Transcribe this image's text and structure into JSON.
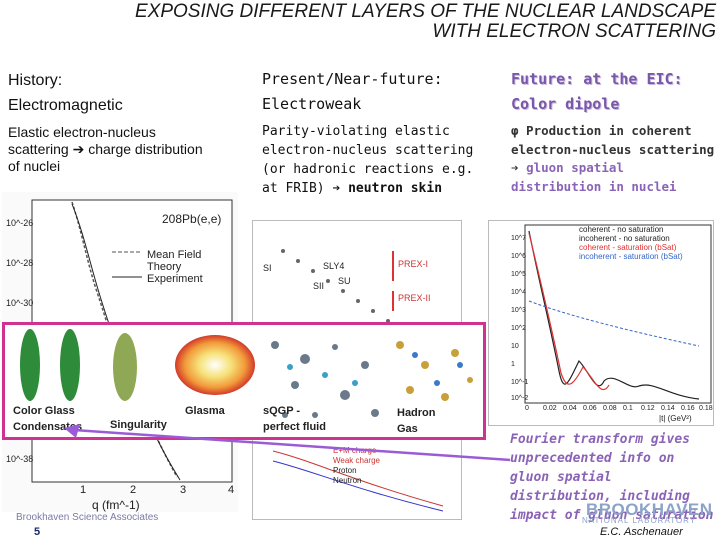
{
  "title": {
    "line1": "EXPOSING DIFFERENT LAYERS OF THE NUCLEAR LANDSCAPE",
    "line2": "WITH ELECTRON SCATTERING"
  },
  "columns": [
    {
      "head1": "History:",
      "head2": "Electromagnetic",
      "body": "Elastic electron-nucleus scattering ➔ charge distribution of nuclei"
    },
    {
      "head1": "Present/Near-future:",
      "head2": "Electroweak",
      "body_a": "Parity-violating elastic electron-nucleus scattering (or hadronic reactions e.g. at FRIB) ➔",
      "body_b": "neutron skin"
    },
    {
      "head1": "Future: at the EIC:",
      "head2": "Color dipole",
      "body_a": "φ Production in coherent electron-nucleus scattering ➔",
      "body_b": "gluon spatial distribution in nuclei"
    }
  ],
  "plot1": {
    "label": "208Pb(e,e)",
    "legend": [
      "Mean Field",
      "Theory",
      "Experiment"
    ],
    "yticks": [
      "10^-26",
      "10^-28",
      "10^-30",
      "10^-38"
    ],
    "xticks": [
      "1",
      "2",
      "3",
      "4"
    ],
    "xlabel": "q (fm^-1)"
  },
  "plot2": {
    "labels": [
      "SI",
      "SLY4",
      "SII",
      "SU",
      "PREX-I",
      "PREX-II"
    ],
    "legend": [
      "E+M charge",
      "Weak charge",
      "Proton",
      "Neutron"
    ]
  },
  "plot3": {
    "legend": [
      "coherent - no saturation",
      "incoherent - no saturation",
      "coherent - saturation (bSat)",
      "incoherent - saturation (bSat)"
    ],
    "yticks": [
      "10^7",
      "10^6",
      "10^5",
      "10^4",
      "10^3",
      "10^2",
      "10",
      "1",
      "10^-1",
      "10^-2"
    ],
    "xticks": [
      "0",
      "0.02",
      "0.04",
      "0.06",
      "0.08",
      "0.1",
      "0.12",
      "0.14",
      "0.16",
      "0.18"
    ],
    "xlabel": "|t| (GeV²)"
  },
  "phases": {
    "color_glass": "Color Glass",
    "condensates": "Condensates",
    "singularity": "Singularity",
    "glasma": "Glasma",
    "sqgp": "sQGP -",
    "perfect_fluid": "perfect fluid",
    "hadron": "Hadron",
    "gas": "Gas"
  },
  "bottom_note": "Fourier transform gives unprecedented info on gluon spatial distribution, including impact of gluon saturation",
  "footer": {
    "org": "Brookhaven Science Associates",
    "page": "5",
    "logo1": "BROOKHAVEN",
    "logo2": "NATIONAL LABORATORY",
    "author": "E.C. Aschenauer"
  },
  "colors": {
    "accent_purple": "#8a63b7",
    "frame_magenta": "#d0338f",
    "arrow_violet": "#9b5bd6"
  }
}
